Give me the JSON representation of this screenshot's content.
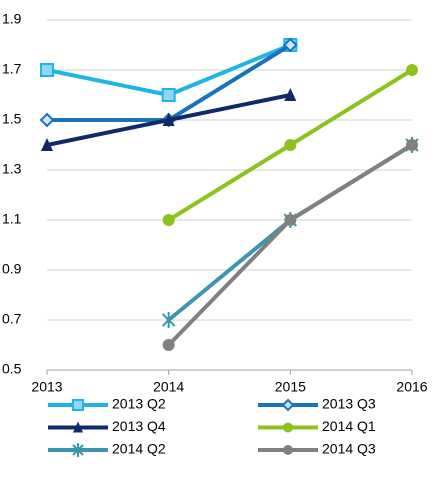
{
  "chart_data": {
    "type": "line",
    "x": [
      2013,
      2014,
      2015,
      2016
    ],
    "xlim": [
      2013,
      2016
    ],
    "xticks": [
      2013,
      2014,
      2015,
      2016
    ],
    "ylim": [
      0.5,
      1.9
    ],
    "yticks": [
      0.5,
      0.7,
      0.9,
      1.1,
      1.3,
      1.5,
      1.7,
      1.9
    ],
    "grid": true,
    "legend": "bottom",
    "series": [
      {
        "name": "2013 Q2",
        "color": "#1fb4e8",
        "marker": "square",
        "values": [
          1.7,
          1.6,
          1.8,
          null
        ]
      },
      {
        "name": "2013 Q3",
        "color": "#1a72bd",
        "marker": "diamond",
        "values": [
          1.5,
          1.5,
          1.8,
          null
        ]
      },
      {
        "name": "2013 Q4",
        "color": "#0f2a6a",
        "marker": "triangle",
        "values": [
          1.4,
          1.5,
          1.6,
          null
        ]
      },
      {
        "name": "2014 Q1",
        "color": "#8cc21e",
        "marker": "circle",
        "values": [
          null,
          1.1,
          1.4,
          1.7
        ]
      },
      {
        "name": "2014 Q2",
        "color": "#3b97b0",
        "marker": "star",
        "values": [
          null,
          0.7,
          1.1,
          1.4
        ]
      },
      {
        "name": "2014 Q3",
        "color": "#808080",
        "marker": "circle",
        "values": [
          null,
          0.6,
          1.1,
          1.4
        ]
      }
    ]
  }
}
